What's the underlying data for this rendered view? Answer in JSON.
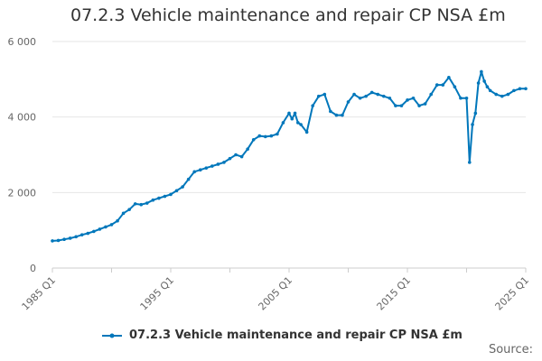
{
  "chart_data": {
    "type": "line",
    "title": "07.2.3 Vehicle maintenance and repair CP NSA £m",
    "xlabel": "",
    "ylabel": "",
    "ylim": [
      0,
      6000
    ],
    "yticks": [
      0,
      2000,
      4000,
      6000
    ],
    "ytick_labels": [
      "0",
      "2 000",
      "4 000",
      "6 000"
    ],
    "xlim": [
      1985.0,
      2025.0
    ],
    "xticks": [
      1985,
      1995,
      2005,
      2015,
      2025
    ],
    "xtick_labels": [
      "1985 Q1",
      "1995 Q1",
      "2005 Q1",
      "2015 Q1",
      "2025 Q1"
    ],
    "grid": true,
    "legend_position": "bottom",
    "series": [
      {
        "name": "07.2.3 Vehicle maintenance and repair CP NSA £m",
        "color": "#0077bb",
        "x": [
          1985.0,
          1985.5,
          1986.0,
          1986.5,
          1987.0,
          1987.5,
          1988.0,
          1988.5,
          1989.0,
          1989.5,
          1990.0,
          1990.5,
          1991.0,
          1991.5,
          1992.0,
          1992.5,
          1993.0,
          1993.5,
          1994.0,
          1994.5,
          1995.0,
          1995.5,
          1996.0,
          1996.5,
          1997.0,
          1997.5,
          1998.0,
          1998.5,
          1999.0,
          1999.5,
          2000.0,
          2000.5,
          2001.0,
          2001.5,
          2002.0,
          2002.5,
          2003.0,
          2003.5,
          2004.0,
          2004.5,
          2005.0,
          2005.25,
          2005.5,
          2005.75,
          2006.0,
          2006.5,
          2007.0,
          2007.5,
          2008.0,
          2008.5,
          2009.0,
          2009.5,
          2010.0,
          2010.5,
          2011.0,
          2011.5,
          2012.0,
          2012.5,
          2013.0,
          2013.5,
          2014.0,
          2014.5,
          2015.0,
          2015.5,
          2016.0,
          2016.5,
          2017.0,
          2017.5,
          2018.0,
          2018.5,
          2019.0,
          2019.5,
          2020.0,
          2020.25,
          2020.5,
          2020.75,
          2021.0,
          2021.25,
          2021.5,
          2021.75,
          2022.0,
          2022.5,
          2023.0,
          2023.5,
          2024.0,
          2024.5,
          2025.0
        ],
        "values": [
          720,
          730,
          760,
          790,
          830,
          880,
          920,
          970,
          1030,
          1090,
          1150,
          1250,
          1450,
          1550,
          1700,
          1680,
          1720,
          1800,
          1850,
          1900,
          1950,
          2050,
          2150,
          2350,
          2550,
          2600,
          2650,
          2700,
          2750,
          2800,
          2900,
          3000,
          2950,
          3150,
          3400,
          3500,
          3480,
          3500,
          3550,
          3850,
          4100,
          3950,
          4100,
          3850,
          3800,
          3600,
          4300,
          4550,
          4600,
          4150,
          4050,
          4050,
          4400,
          4600,
          4500,
          4550,
          4650,
          4600,
          4550,
          4500,
          4300,
          4300,
          4450,
          4500,
          4300,
          4350,
          4600,
          4850,
          4850,
          5050,
          4800,
          4500,
          4500,
          2800,
          3800,
          4100,
          4900,
          5200,
          4950,
          4800,
          4700,
          4600,
          4550,
          4600,
          4700,
          4750,
          4750
        ]
      }
    ]
  },
  "source_label": "Source:"
}
